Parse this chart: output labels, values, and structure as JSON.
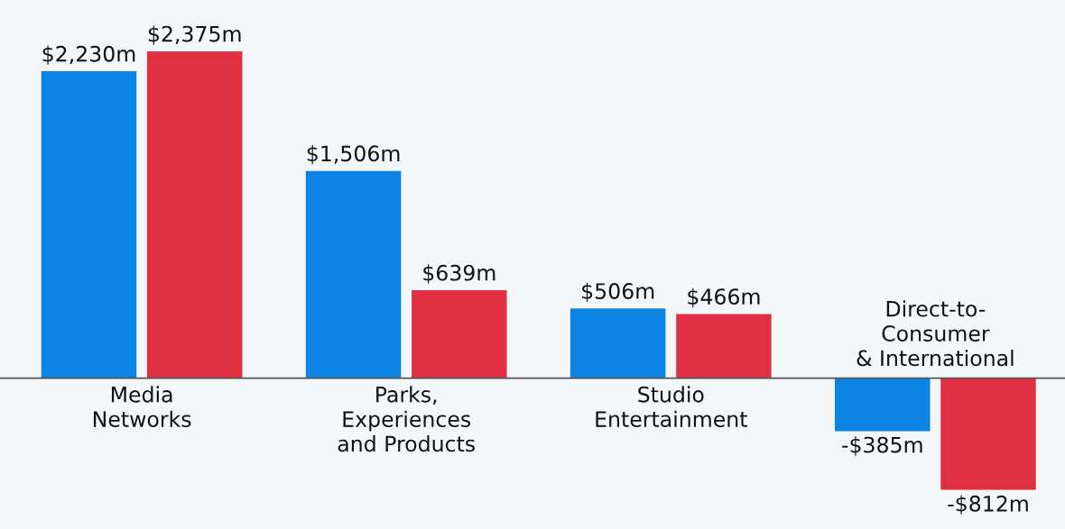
{
  "chart_data": {
    "type": "bar",
    "categories": [
      "Media\nNetworks",
      "Parks,\nExperiences\nand Products",
      "Studio\nEntertainment",
      "Direct-to-\nConsumer\n& International"
    ],
    "series": [
      {
        "color": "#0b84e5",
        "values": [
          2230,
          1506,
          506,
          -385
        ],
        "value_labels": [
          "$2,230m",
          "$1,506m",
          "$506m",
          "-$385m"
        ]
      },
      {
        "color": "#e03044",
        "values": [
          2375,
          639,
          466,
          -812
        ],
        "value_labels": [
          "$2,375m",
          "$639m",
          "$466m",
          "-$812m"
        ]
      }
    ],
    "legend": false
  }
}
